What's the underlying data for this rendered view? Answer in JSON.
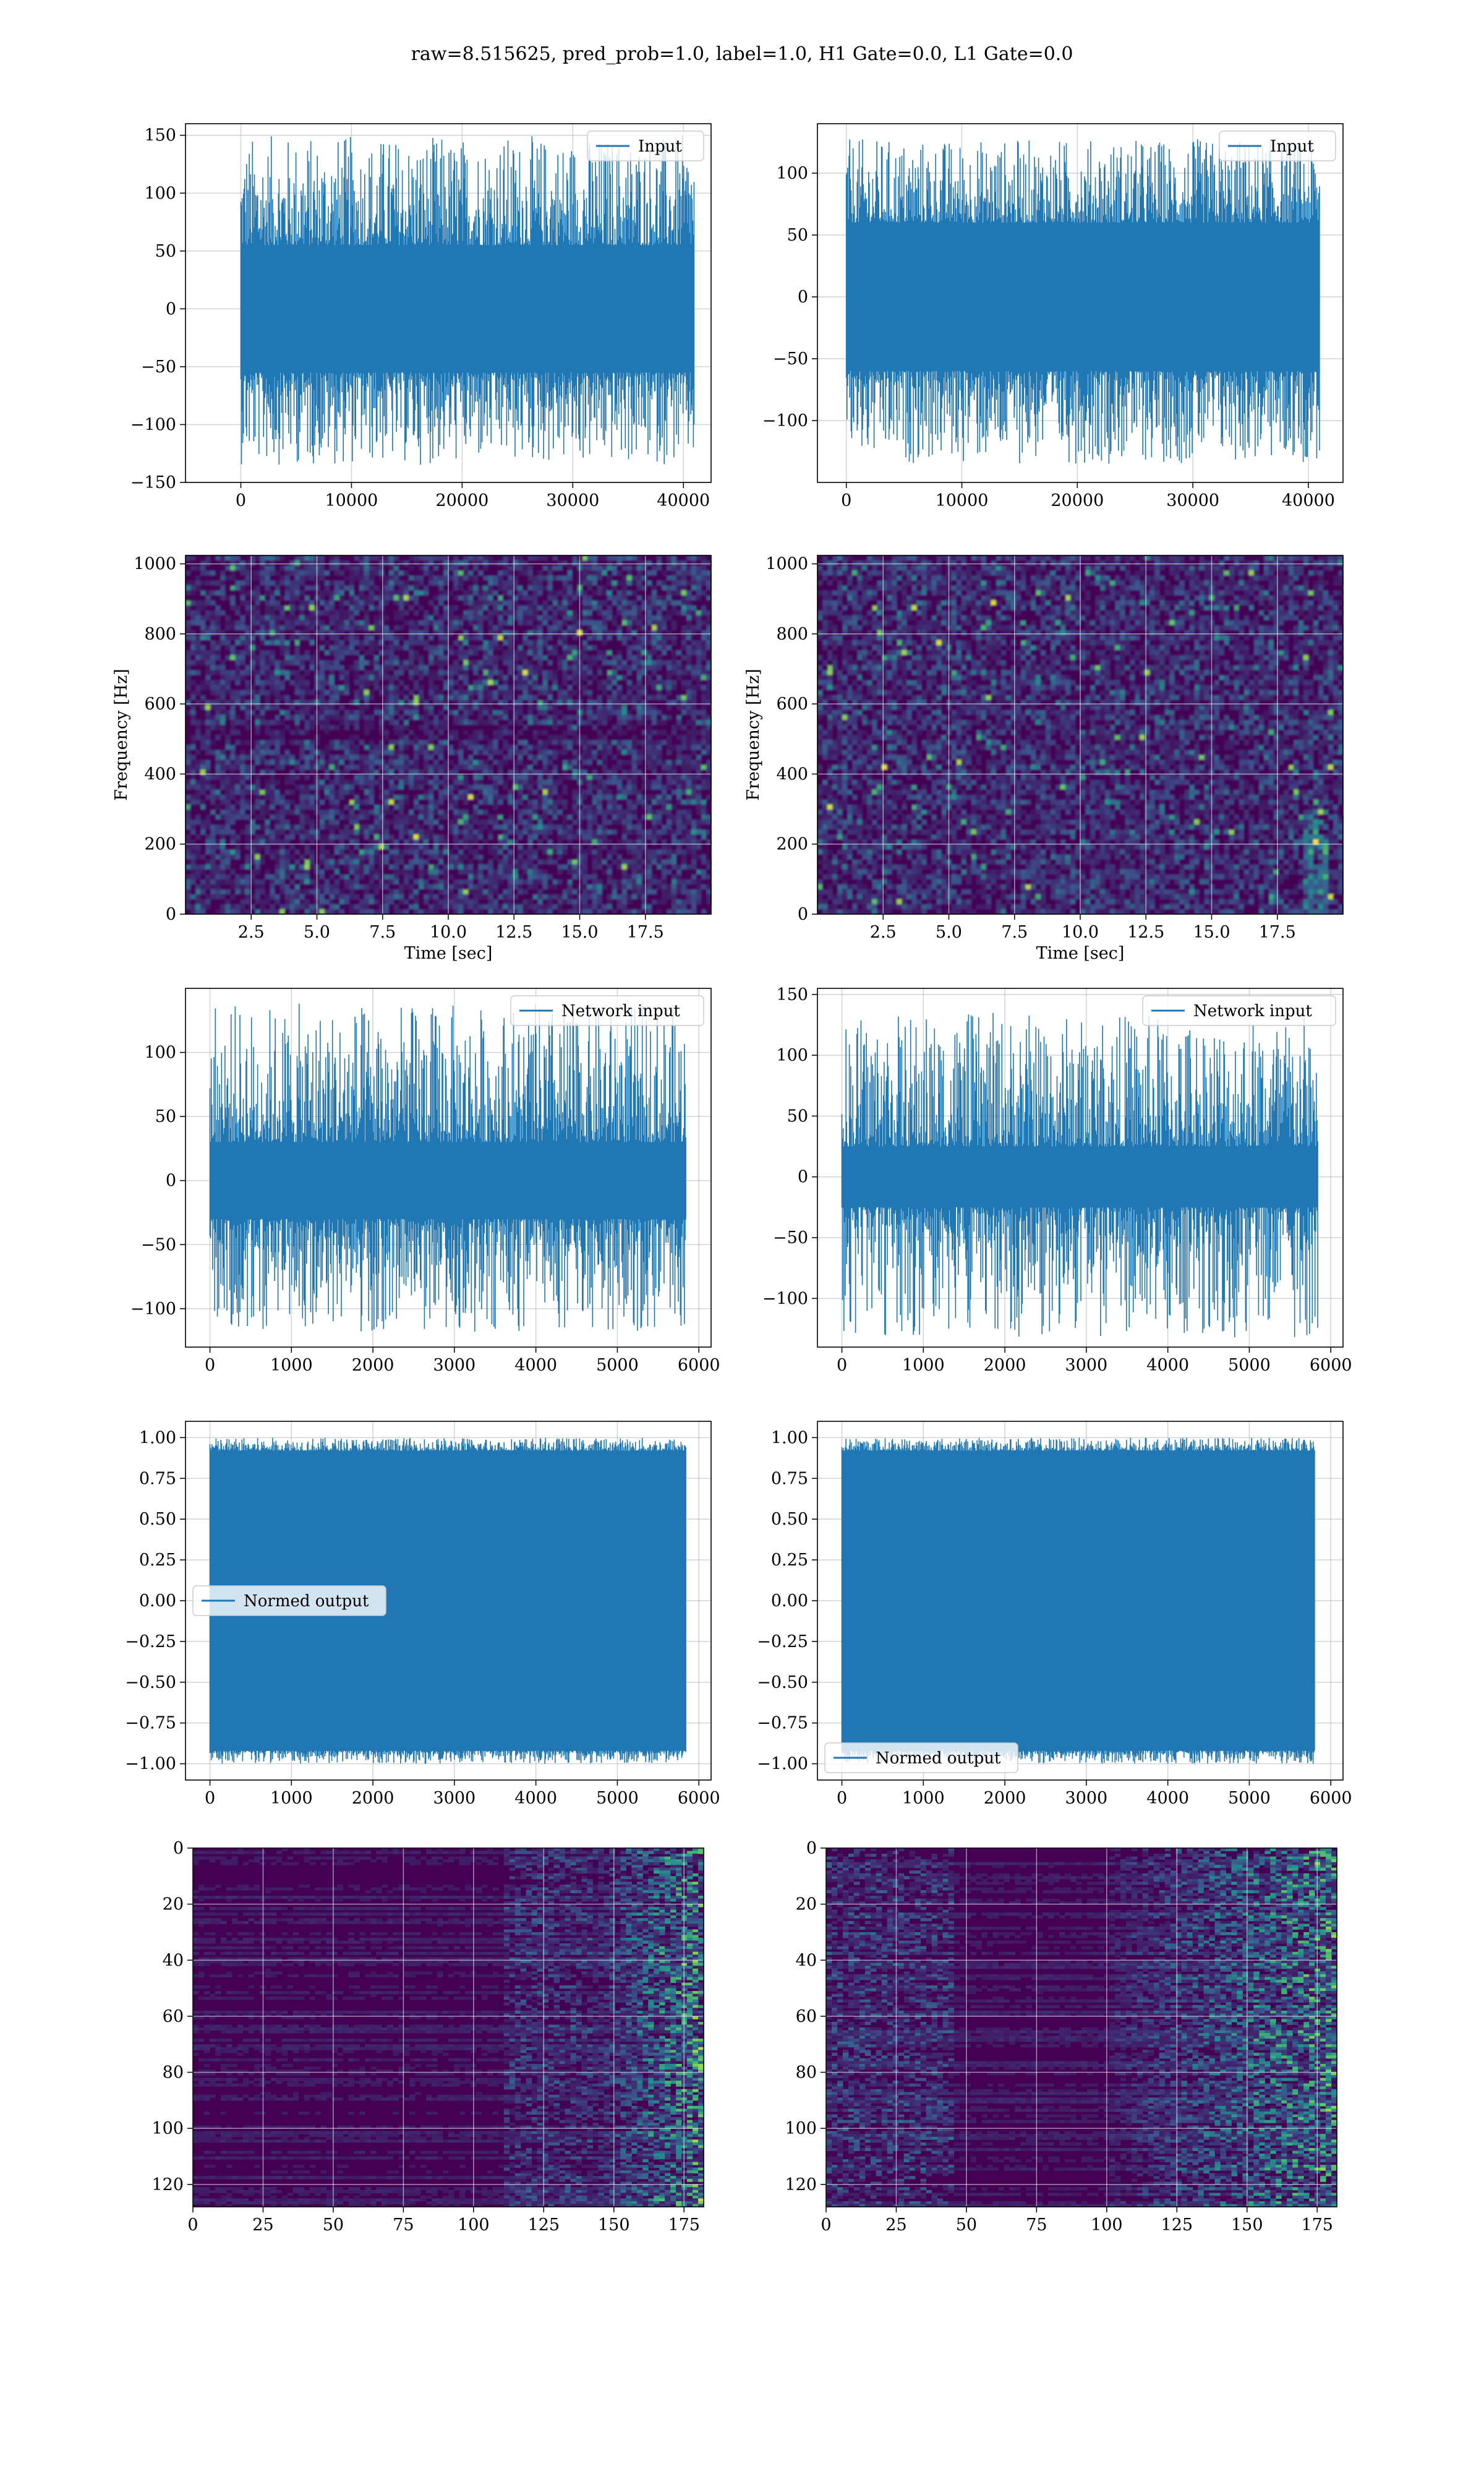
{
  "suptitle": "raw=8.515625, pred_prob=1.0, label=1.0, H1 Gate=0.0, L1 Gate=0.0",
  "colors": {
    "series": "#1f77b4",
    "viridis_low": "#440154",
    "viridis_mid": "#21918c",
    "viridis_high": "#fde725",
    "grid": "#b0b0b0"
  },
  "chart_data": [
    {
      "id": "input-h1",
      "type": "line",
      "legend": "Input",
      "legend_loc": "upper right",
      "grid": true,
      "xlim": [
        -5000,
        42500
      ],
      "ylim": [
        -150,
        160
      ],
      "xticks": [
        0,
        10000,
        20000,
        30000,
        40000
      ],
      "yticks": [
        -150,
        -100,
        -50,
        0,
        50,
        100,
        150
      ],
      "x": [
        0,
        40960
      ],
      "band_y": [
        -55,
        55
      ],
      "envelope_y": [
        -135,
        150
      ]
    },
    {
      "id": "input-l1",
      "type": "line",
      "legend": "Input",
      "legend_loc": "upper right",
      "grid": true,
      "xlim": [
        -2500,
        43000
      ],
      "ylim": [
        -150,
        140
      ],
      "xticks": [
        0,
        10000,
        20000,
        30000,
        40000
      ],
      "yticks": [
        -100,
        -50,
        0,
        50,
        100
      ],
      "x": [
        0,
        40960
      ],
      "band_y": [
        -60,
        60
      ],
      "envelope_y": [
        -135,
        128
      ]
    },
    {
      "id": "spec-h1",
      "type": "heatmap",
      "grid": true,
      "xlabel": "Time [sec]",
      "ylabel": "Frequency [Hz]",
      "xlim": [
        0,
        20
      ],
      "ylim": [
        0,
        1024
      ],
      "xticks": [
        2.5,
        5.0,
        7.5,
        10.0,
        12.5,
        15.0,
        17.5
      ],
      "yticks": [
        0,
        200,
        400,
        600,
        800,
        1000
      ]
    },
    {
      "id": "spec-l1",
      "type": "heatmap",
      "grid": true,
      "xlabel": "Time [sec]",
      "ylabel": "Frequency [Hz]",
      "xlim": [
        0,
        20
      ],
      "ylim": [
        0,
        1024
      ],
      "xticks": [
        2.5,
        5.0,
        7.5,
        10.0,
        12.5,
        15.0,
        17.5
      ],
      "yticks": [
        0,
        200,
        400,
        600,
        800,
        1000
      ]
    },
    {
      "id": "netin-h1",
      "type": "line",
      "legend": "Network input",
      "legend_loc": "upper right",
      "grid": true,
      "xlim": [
        -300,
        6150
      ],
      "ylim": [
        -130,
        150
      ],
      "xticks": [
        0,
        1000,
        2000,
        3000,
        4000,
        5000,
        6000
      ],
      "yticks": [
        -100,
        -50,
        0,
        50,
        100
      ],
      "x": [
        0,
        5840
      ],
      "band_y": [
        -30,
        30
      ],
      "envelope_y": [
        -118,
        138
      ]
    },
    {
      "id": "netin-l1",
      "type": "line",
      "legend": "Network input",
      "legend_loc": "upper right",
      "grid": true,
      "xlim": [
        -300,
        6150
      ],
      "ylim": [
        -140,
        155
      ],
      "xticks": [
        0,
        1000,
        2000,
        3000,
        4000,
        5000,
        6000
      ],
      "yticks": [
        -100,
        -50,
        0,
        50,
        100,
        150
      ],
      "x": [
        0,
        5840
      ],
      "band_y": [
        -25,
        25
      ],
      "envelope_y": [
        -132,
        135
      ]
    },
    {
      "id": "normed-h1",
      "type": "line",
      "legend": "Normed output",
      "legend_loc": "center left",
      "grid": true,
      "xlim": [
        -300,
        6150
      ],
      "ylim": [
        -1.1,
        1.1
      ],
      "xticks": [
        0,
        1000,
        2000,
        3000,
        4000,
        5000,
        6000
      ],
      "yticks": [
        -1.0,
        -0.75,
        -0.5,
        -0.25,
        0.0,
        0.25,
        0.5,
        0.75,
        1.0
      ],
      "x": [
        0,
        5840
      ],
      "band_y": [
        -0.92,
        0.92
      ],
      "envelope_y": [
        -1.0,
        1.0
      ]
    },
    {
      "id": "normed-l1",
      "type": "line",
      "legend": "Normed output",
      "legend_loc": "lower left",
      "grid": true,
      "xlim": [
        -300,
        6150
      ],
      "ylim": [
        -1.1,
        1.1
      ],
      "xticks": [
        0,
        1000,
        2000,
        3000,
        4000,
        5000,
        6000
      ],
      "yticks": [
        -1.0,
        -0.75,
        -0.5,
        -0.25,
        0.0,
        0.25,
        0.5,
        0.75,
        1.0
      ],
      "x": [
        0,
        5800
      ],
      "band_y": [
        -0.92,
        0.92
      ],
      "envelope_y": [
        -1.0,
        1.0
      ]
    },
    {
      "id": "feat-h1",
      "type": "heatmap",
      "grid": true,
      "y_inverted": true,
      "xlim": [
        0,
        182
      ],
      "ylim": [
        128,
        0
      ],
      "xticks": [
        0,
        25,
        50,
        75,
        100,
        125,
        150,
        175
      ],
      "yticks": [
        0,
        20,
        40,
        60,
        80,
        100,
        120
      ]
    },
    {
      "id": "feat-l1",
      "type": "heatmap",
      "grid": true,
      "y_inverted": true,
      "xlim": [
        0,
        182
      ],
      "ylim": [
        128,
        0
      ],
      "xticks": [
        0,
        25,
        50,
        75,
        100,
        125,
        150,
        175
      ],
      "yticks": [
        0,
        20,
        40,
        60,
        80,
        100,
        120
      ]
    }
  ]
}
